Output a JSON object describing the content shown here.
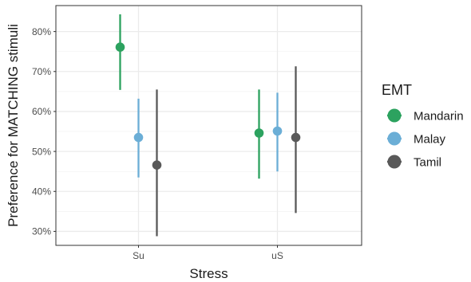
{
  "chart_data": {
    "type": "scatter",
    "subtype": "point-range",
    "xlabel": "Stress",
    "ylabel": "Preference for MATCHING stimuli",
    "categories": [
      "Su",
      "uS"
    ],
    "ylim": [
      0.265,
      0.865
    ],
    "y_ticks": [
      0.3,
      0.4,
      0.5,
      0.6,
      0.7,
      0.8
    ],
    "y_tick_labels": [
      "30%",
      "40%",
      "50%",
      "60%",
      "70%",
      "80%"
    ],
    "grid": true,
    "legend": {
      "title": "EMT",
      "position": "right"
    },
    "series": [
      {
        "name": "Mandarin",
        "color": "#2ca25f",
        "points": [
          {
            "x": "Su",
            "y": 0.761,
            "low": 0.654,
            "high": 0.843
          },
          {
            "x": "uS",
            "y": 0.546,
            "low": 0.432,
            "high": 0.655
          }
        ]
      },
      {
        "name": "Malay",
        "color": "#6baed6",
        "points": [
          {
            "x": "Su",
            "y": 0.535,
            "low": 0.435,
            "high": 0.632
          },
          {
            "x": "uS",
            "y": 0.551,
            "low": 0.45,
            "high": 0.647
          }
        ]
      },
      {
        "name": "Tamil",
        "color": "#595959",
        "points": [
          {
            "x": "Su",
            "y": 0.466,
            "low": 0.288,
            "high": 0.655
          },
          {
            "x": "uS",
            "y": 0.535,
            "low": 0.346,
            "high": 0.713
          }
        ]
      }
    ]
  }
}
